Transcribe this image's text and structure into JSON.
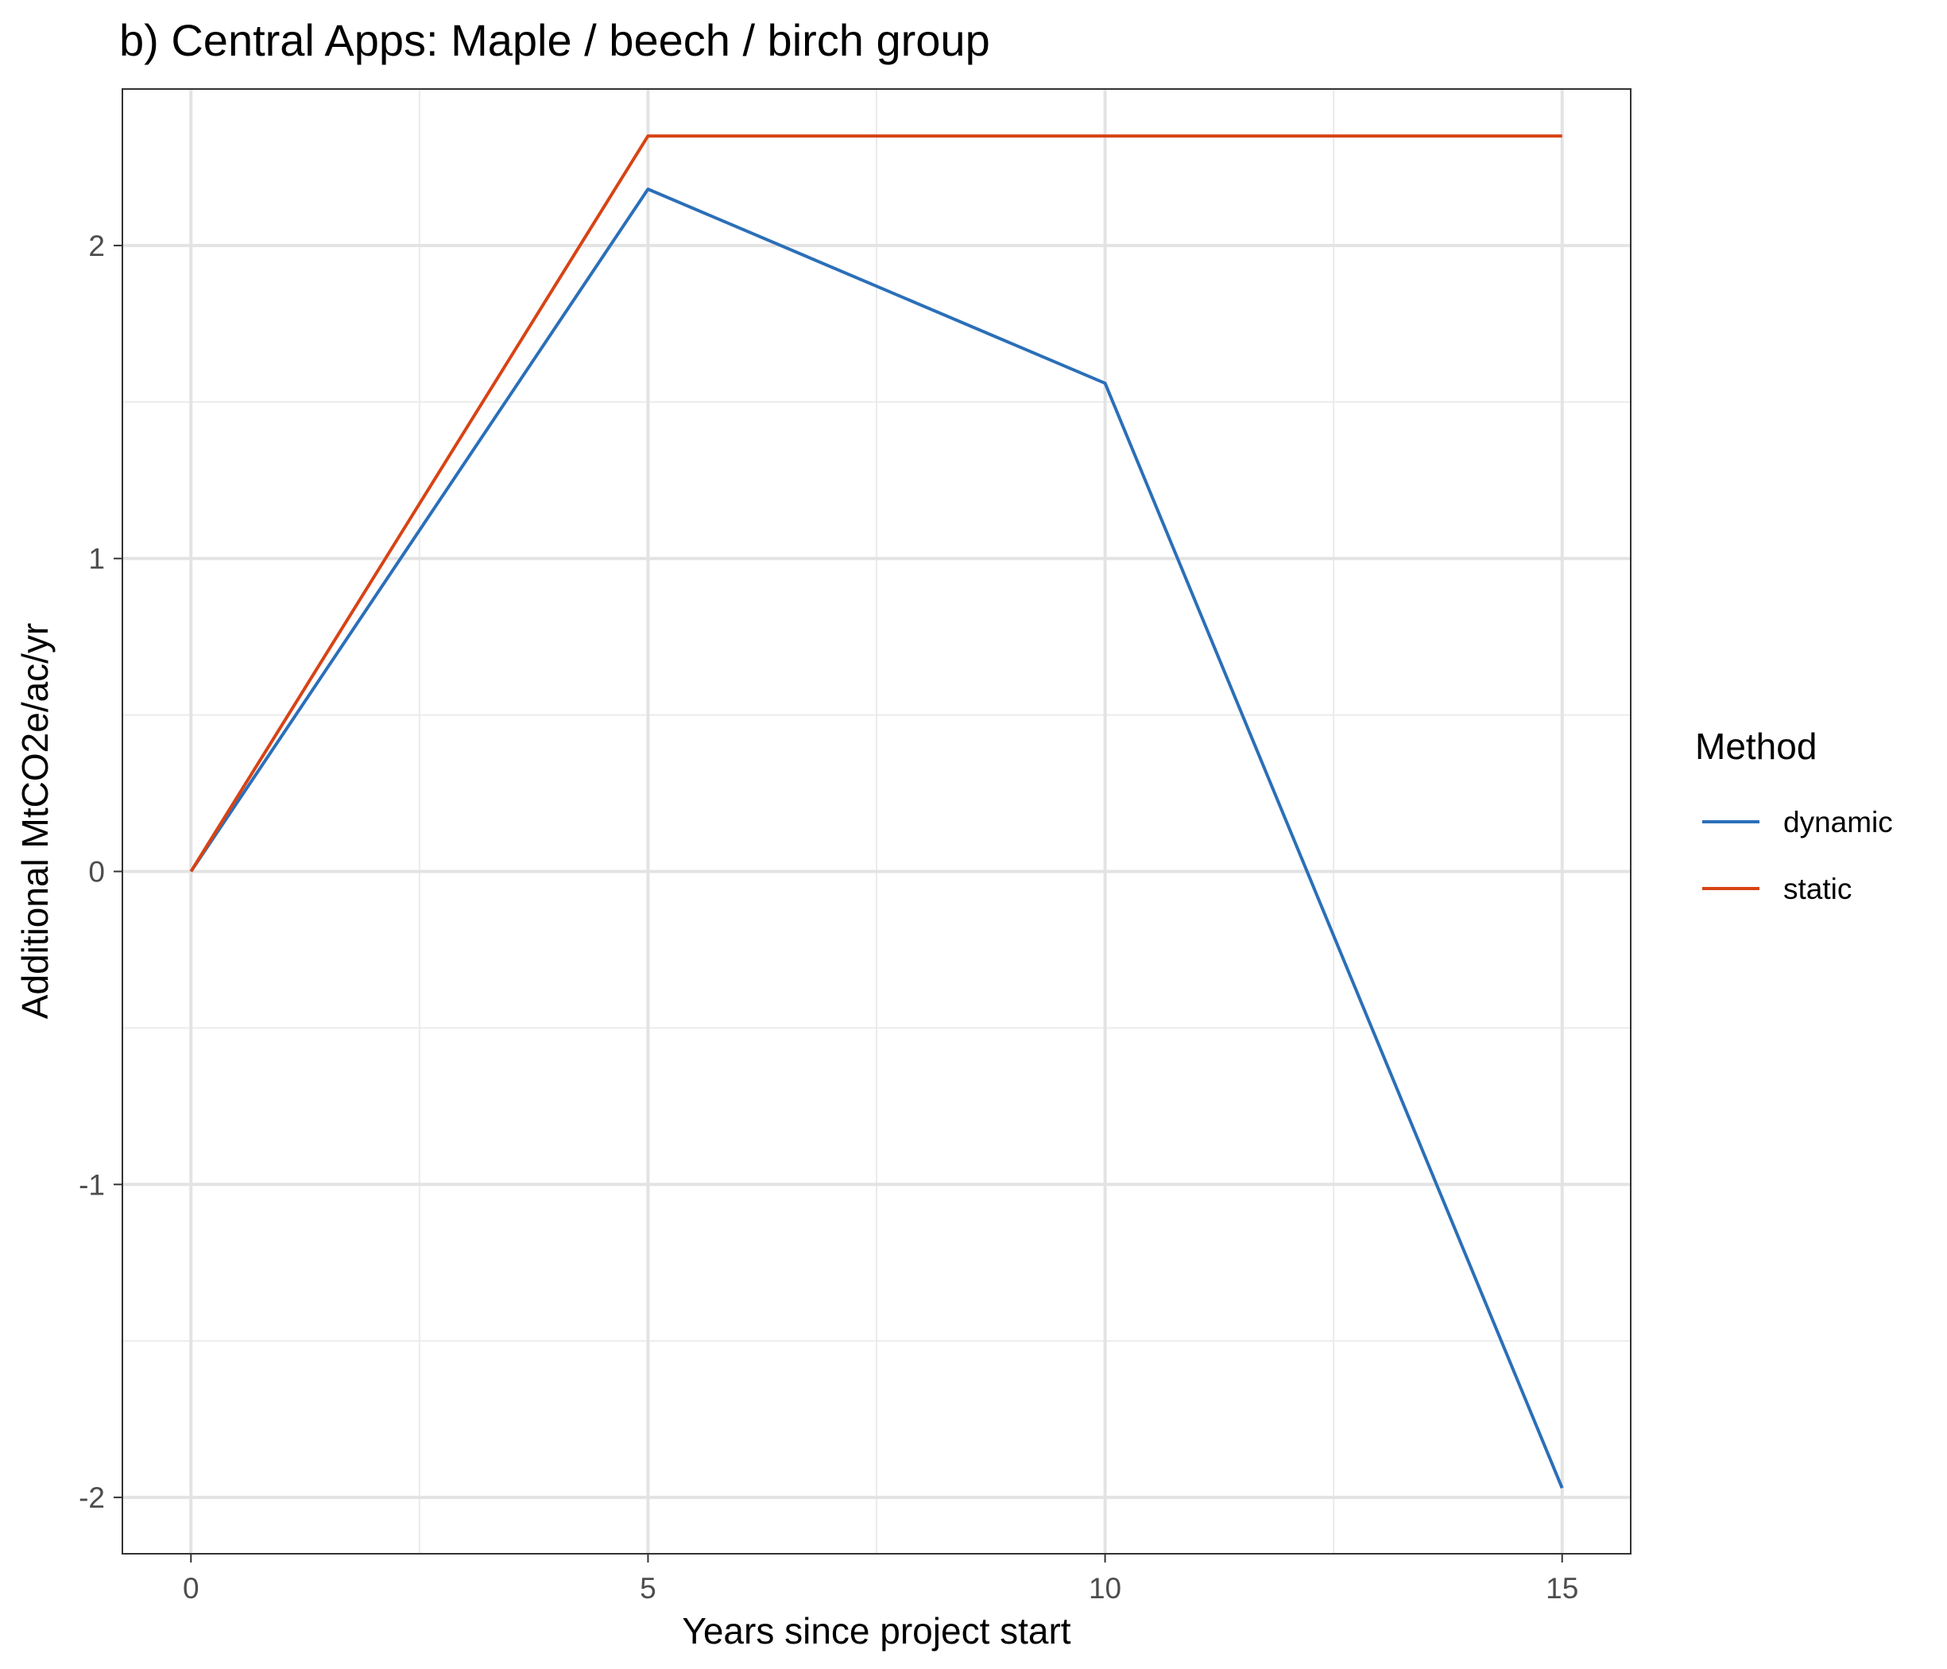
{
  "chart_data": {
    "type": "line",
    "title": "b) Central Apps: Maple / beech / birch group",
    "xlabel": "Years since project start",
    "ylabel": "Additional MtCO2e/ac/yr",
    "xlim": [
      -0.75,
      15.75
    ],
    "ylim": [
      -2.18,
      2.5
    ],
    "x_ticks": [
      0,
      5,
      10,
      15
    ],
    "x_tick_labels": [
      "0",
      "5",
      "10",
      "15"
    ],
    "y_ticks": [
      -2,
      -1,
      0,
      1,
      2
    ],
    "y_tick_labels": [
      "-2",
      "-1",
      "0",
      "1",
      "2"
    ],
    "grid": true,
    "legend_position": "right",
    "legend_title": "Method",
    "series": [
      {
        "name": "dynamic",
        "color": "#2b6fb8",
        "x": [
          0,
          5,
          10,
          15
        ],
        "y": [
          0,
          2.18,
          1.56,
          -1.97
        ]
      },
      {
        "name": "static",
        "color": "#d84315",
        "x": [
          0,
          5,
          10,
          15
        ],
        "y": [
          0,
          2.35,
          2.35,
          2.35
        ]
      }
    ]
  }
}
